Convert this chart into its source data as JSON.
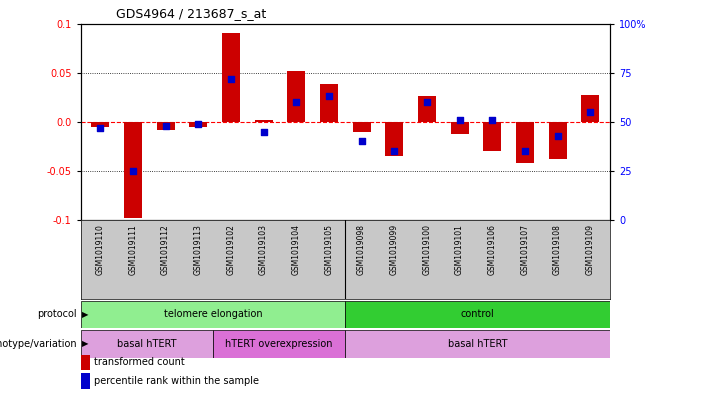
{
  "title": "GDS4964 / 213687_s_at",
  "samples": [
    "GSM1019110",
    "GSM1019111",
    "GSM1019112",
    "GSM1019113",
    "GSM1019102",
    "GSM1019103",
    "GSM1019104",
    "GSM1019105",
    "GSM1019098",
    "GSM1019099",
    "GSM1019100",
    "GSM1019101",
    "GSM1019106",
    "GSM1019107",
    "GSM1019108",
    "GSM1019109"
  ],
  "transformed_count": [
    -0.005,
    -0.098,
    -0.008,
    -0.005,
    0.09,
    0.002,
    0.052,
    0.038,
    -0.01,
    -0.035,
    0.026,
    -0.012,
    -0.03,
    -0.042,
    -0.038,
    0.027
  ],
  "percentile_rank": [
    47,
    25,
    48,
    49,
    72,
    45,
    60,
    63,
    40,
    35,
    60,
    51,
    51,
    35,
    43,
    55
  ],
  "protocol_groups": [
    {
      "label": "telomere elongation",
      "start": 0,
      "end": 8,
      "color": "#90EE90"
    },
    {
      "label": "control",
      "start": 8,
      "end": 16,
      "color": "#32CD32"
    }
  ],
  "genotype_groups": [
    {
      "label": "basal hTERT",
      "start": 0,
      "end": 4,
      "color": "#DDA0DD"
    },
    {
      "label": "hTERT overexpression",
      "start": 4,
      "end": 8,
      "color": "#DA70D6"
    },
    {
      "label": "basal hTERT",
      "start": 8,
      "end": 16,
      "color": "#DDA0DD"
    }
  ],
  "ylim": [
    -0.1,
    0.1
  ],
  "yticks_left": [
    -0.1,
    -0.05,
    0.0,
    0.05,
    0.1
  ],
  "yticks_right_labels": [
    "0",
    "25",
    "50",
    "75",
    "100%"
  ],
  "bar_color": "#CC0000",
  "dot_color": "#0000CC",
  "zero_line_color": "#FF0000",
  "legend_items": [
    "transformed count",
    "percentile rank within the sample"
  ]
}
